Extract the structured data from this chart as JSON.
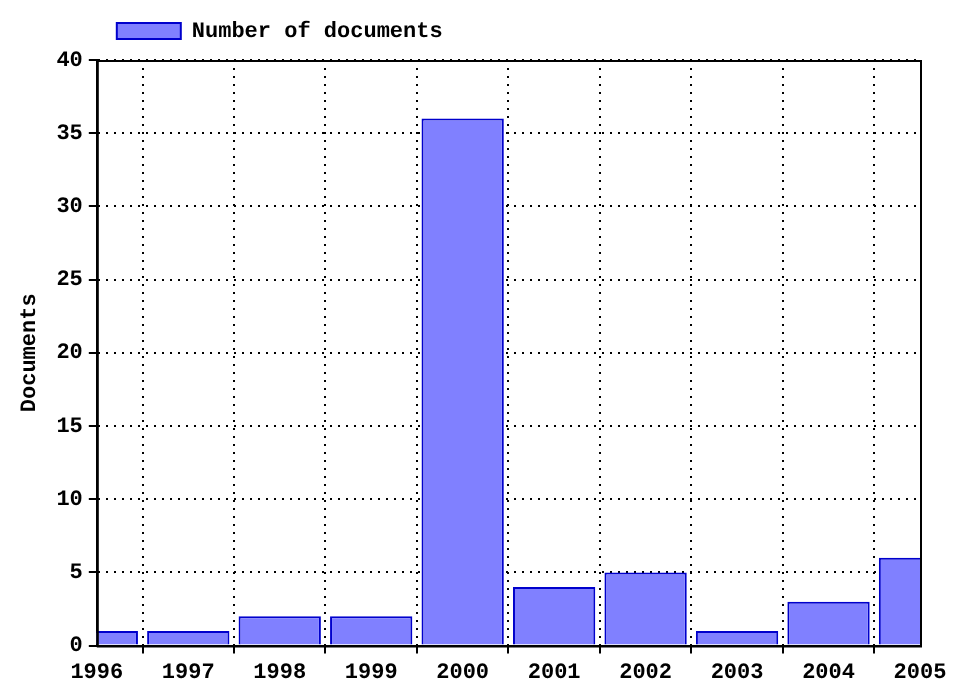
{
  "chart_data": {
    "type": "bar",
    "ylabel": "Documents",
    "x": [
      1996,
      1997,
      1998,
      1999,
      2000,
      2001,
      2002,
      2003,
      2004,
      2005
    ],
    "series": [
      {
        "name": "Number of documents",
        "color": "#8080ff",
        "values": [
          1,
          1,
          2,
          2,
          36,
          4,
          5,
          1,
          3,
          6
        ]
      }
    ],
    "xlim": [
      1996,
      2005
    ],
    "xticks": [
      1996,
      1997,
      1998,
      1999,
      2000,
      2001,
      2002,
      2003,
      2004,
      2005
    ],
    "ylim": [
      0,
      40
    ],
    "yticks": [
      0,
      5,
      10,
      15,
      20,
      25,
      30,
      35,
      40
    ],
    "grid": true,
    "legend": "top left"
  }
}
